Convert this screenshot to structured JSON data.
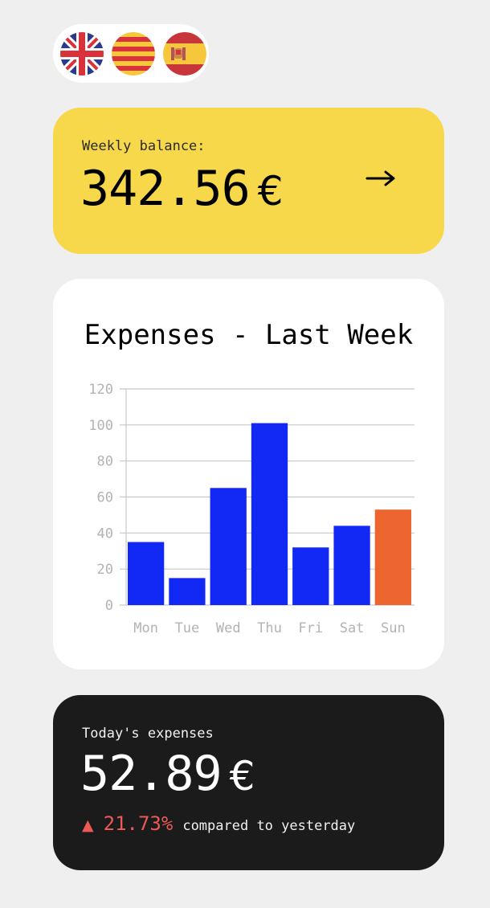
{
  "language_switcher": {
    "flags": [
      {
        "name": "english-flag-icon",
        "language": "English"
      },
      {
        "name": "catalan-flag-icon",
        "language": "Català"
      },
      {
        "name": "spanish-flag-icon",
        "language": "Español"
      }
    ]
  },
  "balance": {
    "label": "Weekly balance:",
    "amount": "342.56",
    "currency": "€",
    "action_icon": "arrow-right-icon"
  },
  "expenses_chart": {
    "title": "Expenses - Last Week"
  },
  "chart_data": {
    "type": "bar",
    "title": "Expenses - Last Week",
    "xlabel": "",
    "ylabel": "",
    "categories": [
      "Mon",
      "Tue",
      "Wed",
      "Thu",
      "Fri",
      "Sat",
      "Sun"
    ],
    "values": [
      35,
      15,
      65,
      101,
      32,
      44,
      53
    ],
    "ylim": [
      0,
      120
    ],
    "yticks": [
      0,
      20,
      40,
      60,
      80,
      100,
      120
    ],
    "grid": true,
    "legend": "none",
    "bar_color": "#1228f5",
    "highlight_index": 6,
    "highlight_color": "#ee662f"
  },
  "today": {
    "label": "Today's expenses",
    "amount": "52.89",
    "currency": "€",
    "change_arrow": "▲",
    "change_percent": "21.73%",
    "change_text": "compared to yesterday",
    "change_color": "#ea5a57"
  },
  "colors": {
    "background": "#efefef",
    "balance_card": "#f8d84b",
    "chart_card": "#ffffff",
    "today_card": "#1b1b1b"
  }
}
